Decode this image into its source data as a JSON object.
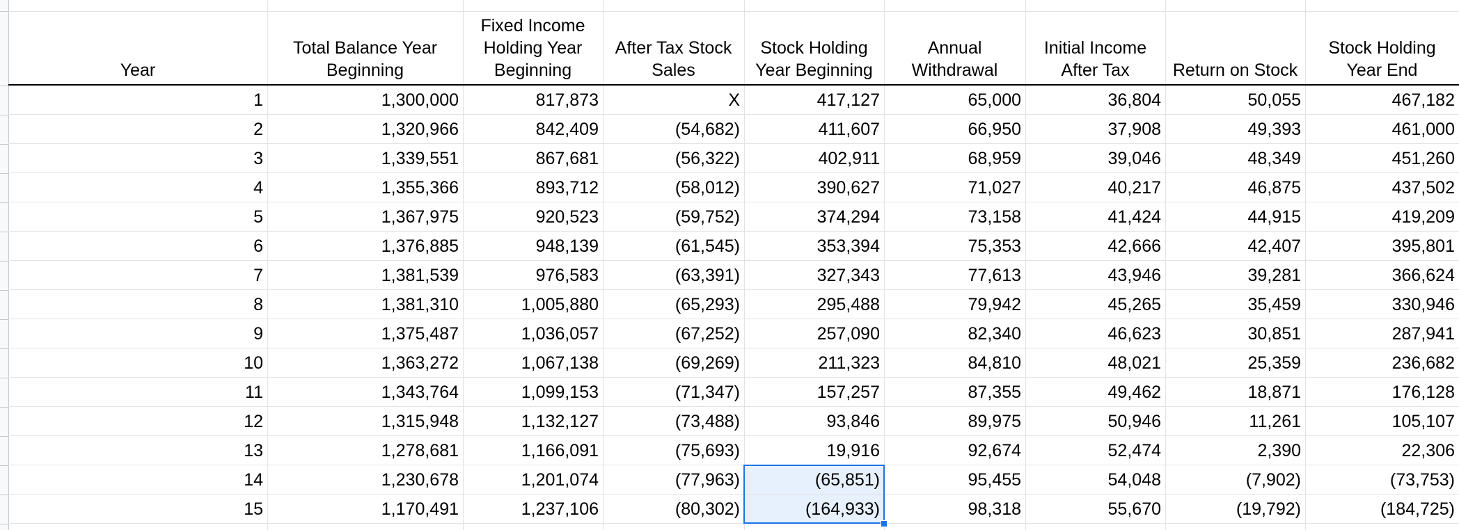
{
  "headers": [
    "Year",
    "Total Balance Year\nBeginning",
    "Fixed Income\nHolding Year\nBeginning",
    "After Tax Stock\nSales",
    "Stock Holding\nYear Beginning",
    "Annual\nWithdrawal",
    "Initial Income\nAfter Tax",
    "Return on Stock",
    "Stock Holding\nYear End"
  ],
  "rows": [
    [
      "1",
      "1,300,000",
      "817,873",
      "X",
      "417,127",
      "65,000",
      "36,804",
      "50,055",
      "467,182"
    ],
    [
      "2",
      "1,320,966",
      "842,409",
      "(54,682)",
      "411,607",
      "66,950",
      "37,908",
      "49,393",
      "461,000"
    ],
    [
      "3",
      "1,339,551",
      "867,681",
      "(56,322)",
      "402,911",
      "68,959",
      "39,046",
      "48,349",
      "451,260"
    ],
    [
      "4",
      "1,355,366",
      "893,712",
      "(58,012)",
      "390,627",
      "71,027",
      "40,217",
      "46,875",
      "437,502"
    ],
    [
      "5",
      "1,367,975",
      "920,523",
      "(59,752)",
      "374,294",
      "73,158",
      "41,424",
      "44,915",
      "419,209"
    ],
    [
      "6",
      "1,376,885",
      "948,139",
      "(61,545)",
      "353,394",
      "75,353",
      "42,666",
      "42,407",
      "395,801"
    ],
    [
      "7",
      "1,381,539",
      "976,583",
      "(63,391)",
      "327,343",
      "77,613",
      "43,946",
      "39,281",
      "366,624"
    ],
    [
      "8",
      "1,381,310",
      "1,005,880",
      "(65,293)",
      "295,488",
      "79,942",
      "45,265",
      "35,459",
      "330,946"
    ],
    [
      "9",
      "1,375,487",
      "1,036,057",
      "(67,252)",
      "257,090",
      "82,340",
      "46,623",
      "30,851",
      "287,941"
    ],
    [
      "10",
      "1,363,272",
      "1,067,138",
      "(69,269)",
      "211,323",
      "84,810",
      "48,021",
      "25,359",
      "236,682"
    ],
    [
      "11",
      "1,343,764",
      "1,099,153",
      "(71,347)",
      "157,257",
      "87,355",
      "49,462",
      "18,871",
      "176,128"
    ],
    [
      "12",
      "1,315,948",
      "1,132,127",
      "(73,488)",
      "93,846",
      "89,975",
      "50,946",
      "11,261",
      "105,107"
    ],
    [
      "13",
      "1,278,681",
      "1,166,091",
      "(75,693)",
      "19,916",
      "92,674",
      "52,474",
      "2,390",
      "22,306"
    ],
    [
      "14",
      "1,230,678",
      "1,201,074",
      "(77,963)",
      "(65,851)",
      "95,455",
      "54,048",
      "(7,902)",
      "(73,753)"
    ],
    [
      "15",
      "1,170,491",
      "1,237,106",
      "(80,302)",
      "(164,933)",
      "98,318",
      "55,670",
      "(19,792)",
      "(184,725)"
    ]
  ],
  "selection": {
    "column": 4,
    "rows": [
      13,
      14
    ]
  },
  "colors": {
    "selection_border": "#1a73e8",
    "selection_fill": "#e7f0fd",
    "gridline": "#e2e3e3"
  }
}
